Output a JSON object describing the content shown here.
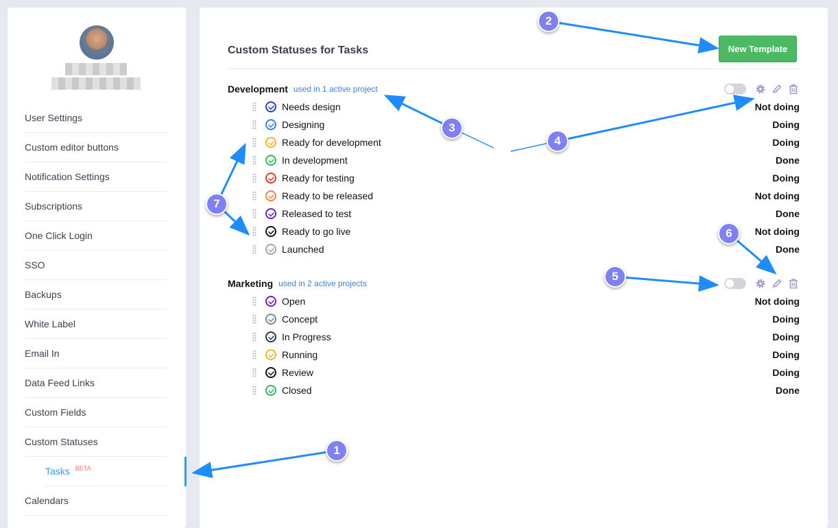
{
  "sidebar": {
    "items": [
      {
        "label": "User Settings"
      },
      {
        "label": "Custom editor buttons"
      },
      {
        "label": "Notification Settings"
      },
      {
        "label": "Subscriptions"
      },
      {
        "label": "One Click Login"
      },
      {
        "label": "SSO"
      },
      {
        "label": "Backups"
      },
      {
        "label": "White Label"
      },
      {
        "label": "Email In"
      },
      {
        "label": "Data Feed Links"
      },
      {
        "label": "Custom Fields"
      },
      {
        "label": "Custom Statuses"
      },
      {
        "label": "Tasks",
        "badge": "BETA",
        "active": true
      },
      {
        "label": "Calendars"
      }
    ],
    "accent": "#3b99e0"
  },
  "main": {
    "title": "Custom Statuses for Tasks",
    "new_template_label": "New Template",
    "groups": [
      {
        "name": "Development",
        "used": "used in 1 active project",
        "enabled": false,
        "rows": [
          {
            "name": "Needs design",
            "status": "Not doing",
            "color": "#1f3fcf"
          },
          {
            "name": "Designing",
            "status": "Doing",
            "color": "#2f80ed"
          },
          {
            "name": "Ready for development",
            "status": "Doing",
            "color": "#f0b429"
          },
          {
            "name": "In development",
            "status": "Done",
            "color": "#2eb85c"
          },
          {
            "name": "Ready for testing",
            "status": "Doing",
            "color": "#e5392b"
          },
          {
            "name": "Ready to be released",
            "status": "Not doing",
            "color": "#f2853a"
          },
          {
            "name": "Released to test",
            "status": "Done",
            "color": "#6a1fc2"
          },
          {
            "name": "Ready to go live",
            "status": "Not doing",
            "color": "#111111"
          },
          {
            "name": "Launched",
            "status": "Done",
            "color": "#9aa7b0"
          }
        ]
      },
      {
        "name": "Marketing",
        "used": "used in 2 active projects",
        "enabled": false,
        "rows": [
          {
            "name": "Open",
            "status": "Not doing",
            "color": "#6a1fc2"
          },
          {
            "name": "Concept",
            "status": "Doing",
            "color": "#7c8594"
          },
          {
            "name": "In Progress",
            "status": "Doing",
            "color": "#2a3552"
          },
          {
            "name": "Running",
            "status": "Doing",
            "color": "#f0b429"
          },
          {
            "name": "Review",
            "status": "Doing",
            "color": "#111111"
          },
          {
            "name": "Closed",
            "status": "Done",
            "color": "#2eb85c"
          }
        ]
      }
    ]
  },
  "annotations": [
    "1",
    "2",
    "3",
    "4",
    "5",
    "6",
    "7"
  ]
}
